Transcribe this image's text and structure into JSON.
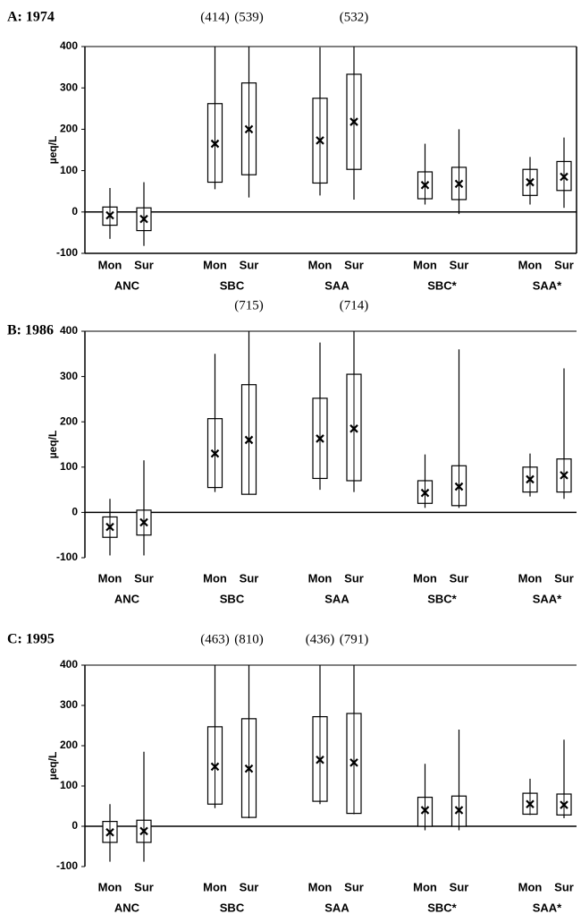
{
  "chart_data": [
    {
      "type": "box",
      "title": "A: 1974",
      "ylabel": "µeq/L",
      "categories": [
        "Mon",
        "Sur",
        "Mon",
        "Sur",
        "Mon",
        "Sur",
        "Mon",
        "Sur",
        "Mon",
        "Sur"
      ],
      "groups": [
        "ANC",
        "SBC",
        "SAA",
        "SBC*",
        "SAA*"
      ],
      "boxes": [
        {
          "low": -65,
          "q1": -32,
          "mean": -8,
          "q3": 12,
          "high": 58
        },
        {
          "low": -82,
          "q1": -45,
          "mean": -17,
          "q3": 10,
          "high": 72
        },
        {
          "low": 55,
          "q1": 72,
          "mean": 165,
          "q3": 262,
          "high": 414
        },
        {
          "low": 35,
          "q1": 90,
          "mean": 200,
          "q3": 312,
          "high": 539
        },
        {
          "low": 40,
          "q1": 70,
          "mean": 173,
          "q3": 275,
          "high": 398
        },
        {
          "low": 30,
          "q1": 103,
          "mean": 218,
          "q3": 333,
          "high": 532
        },
        {
          "low": 18,
          "q1": 32,
          "mean": 65,
          "q3": 97,
          "high": 165
        },
        {
          "low": -5,
          "q1": 30,
          "mean": 68,
          "q3": 108,
          "high": 200
        },
        {
          "low": 18,
          "q1": 40,
          "mean": 72,
          "q3": 103,
          "high": 133
        },
        {
          "low": 10,
          "q1": 52,
          "mean": 85,
          "q3": 122,
          "high": 180
        }
      ],
      "high_labels": [
        null,
        null,
        "(414)",
        "(539)",
        null,
        "(532)",
        null,
        null,
        null,
        null
      ],
      "ylim": [
        -100,
        400
      ],
      "yticks": [
        -100,
        0,
        100,
        200,
        300,
        400
      ],
      "frame": true
    },
    {
      "type": "box",
      "title": "B: 1986",
      "ylabel": "µeq/L",
      "categories": [
        "Mon",
        "Sur",
        "Mon",
        "Sur",
        "Mon",
        "Sur",
        "Mon",
        "Sur",
        "Mon",
        "Sur"
      ],
      "groups": [
        "ANC",
        "SBC",
        "SAA",
        "SBC*",
        "SAA*"
      ],
      "boxes": [
        {
          "low": -95,
          "q1": -55,
          "mean": -32,
          "q3": -10,
          "high": 30
        },
        {
          "low": -95,
          "q1": -50,
          "mean": -22,
          "q3": 5,
          "high": 115
        },
        {
          "low": 45,
          "q1": 55,
          "mean": 130,
          "q3": 207,
          "high": 350
        },
        {
          "low": 40,
          "q1": 40,
          "mean": 160,
          "q3": 282,
          "high": 715
        },
        {
          "low": 50,
          "q1": 75,
          "mean": 163,
          "q3": 252,
          "high": 375
        },
        {
          "low": 45,
          "q1": 70,
          "mean": 185,
          "q3": 305,
          "high": 714
        },
        {
          "low": 10,
          "q1": 20,
          "mean": 43,
          "q3": 70,
          "high": 128
        },
        {
          "low": 10,
          "q1": 15,
          "mean": 57,
          "q3": 103,
          "high": 360
        },
        {
          "low": 35,
          "q1": 45,
          "mean": 73,
          "q3": 100,
          "high": 130
        },
        {
          "low": 30,
          "q1": 45,
          "mean": 82,
          "q3": 118,
          "high": 318
        }
      ],
      "high_labels": [
        null,
        null,
        null,
        "(715)",
        null,
        "(714)",
        null,
        null,
        null,
        null
      ],
      "ylim": [
        -100,
        400
      ],
      "yticks": [
        -100,
        0,
        100,
        200,
        300,
        400
      ],
      "frame": false
    },
    {
      "type": "box",
      "title": "C: 1995",
      "ylabel": "µeq/L",
      "categories": [
        "Mon",
        "Sur",
        "Mon",
        "Sur",
        "Mon",
        "Sur",
        "Mon",
        "Sur",
        "Mon",
        "Sur"
      ],
      "groups": [
        "ANC",
        "SBC",
        "SAA",
        "SBC*",
        "SAA*"
      ],
      "boxes": [
        {
          "low": -88,
          "q1": -40,
          "mean": -15,
          "q3": 12,
          "high": 55
        },
        {
          "low": -88,
          "q1": -40,
          "mean": -12,
          "q3": 15,
          "high": 185
        },
        {
          "low": 45,
          "q1": 55,
          "mean": 148,
          "q3": 247,
          "high": 463
        },
        {
          "low": 20,
          "q1": 22,
          "mean": 143,
          "q3": 267,
          "high": 810
        },
        {
          "low": 55,
          "q1": 62,
          "mean": 165,
          "q3": 272,
          "high": 436
        },
        {
          "low": 30,
          "q1": 32,
          "mean": 158,
          "q3": 280,
          "high": 791
        },
        {
          "low": -10,
          "q1": 0,
          "mean": 40,
          "q3": 72,
          "high": 155
        },
        {
          "low": -10,
          "q1": 0,
          "mean": 40,
          "q3": 75,
          "high": 240
        },
        {
          "low": 28,
          "q1": 30,
          "mean": 55,
          "q3": 82,
          "high": 118
        },
        {
          "low": 20,
          "q1": 28,
          "mean": 53,
          "q3": 80,
          "high": 215
        }
      ],
      "high_labels": [
        null,
        null,
        "(463)",
        "(810)",
        "(436)",
        "(791)",
        null,
        null,
        null,
        null
      ],
      "ylim": [
        -100,
        400
      ],
      "yticks": [
        -100,
        0,
        100,
        200,
        300,
        400
      ],
      "frame": false
    }
  ]
}
